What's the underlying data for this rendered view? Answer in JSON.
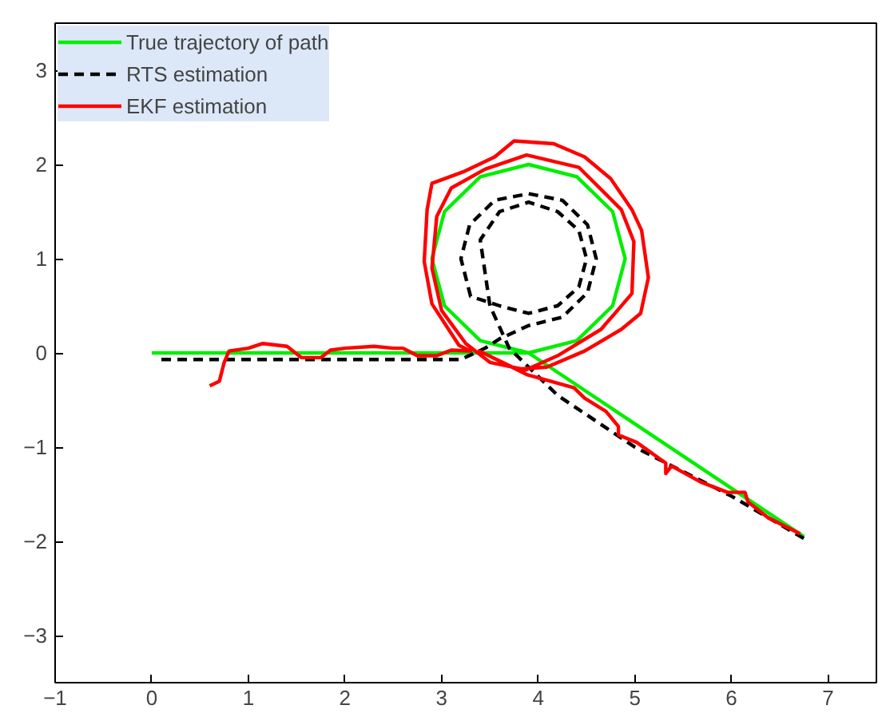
{
  "chart_data": {
    "type": "line",
    "xlim": [
      -1,
      7.5
    ],
    "ylim": [
      -3.5,
      3.5
    ],
    "xticks": [
      -1,
      0,
      1,
      2,
      3,
      4,
      5,
      6,
      7
    ],
    "yticks": [
      -3,
      -2,
      -1,
      0,
      1,
      2,
      3
    ],
    "grid": false,
    "legend": "top left",
    "marker": "none",
    "series": [
      {
        "name": "True trajectory of path",
        "color": "#00ee00",
        "line_style": "solid",
        "x": [
          0,
          3.9,
          4.4,
          4.77,
          4.9,
          4.77,
          4.4,
          3.9,
          3.4,
          3.03,
          2.9,
          3.03,
          3.4,
          3.9,
          6.75
        ],
        "values": [
          0,
          0,
          0.13,
          0.5,
          1,
          1.5,
          1.87,
          2,
          1.87,
          1.5,
          1,
          0.5,
          0.13,
          0,
          -1.95
        ]
      },
      {
        "name": "RTS estimation",
        "color": "#000000",
        "line_style": "dashed",
        "x": [
          0.1,
          3.2,
          3.45,
          3.6,
          3.9,
          4.25,
          4.51,
          4.6,
          4.51,
          4.25,
          3.9,
          3.55,
          3.29,
          3.2,
          3.3,
          3.6,
          3.9,
          4.2,
          4.42,
          4.5,
          4.42,
          4.2,
          3.9,
          3.6,
          3.4,
          3.5,
          3.7,
          4.2,
          5.0,
          6.0,
          6.75
        ],
        "values": [
          -0.07,
          -0.07,
          0.05,
          0.15,
          0.29,
          0.38,
          0.64,
          1.0,
          1.36,
          1.62,
          1.69,
          1.62,
          1.36,
          1.0,
          0.6,
          0.5,
          0.42,
          0.5,
          0.7,
          1.0,
          1.3,
          1.5,
          1.6,
          1.5,
          1.2,
          0.5,
          0.05,
          -0.45,
          -1.0,
          -1.52,
          -1.97
        ]
      },
      {
        "name": "EKF estimation",
        "color": "#ff0000",
        "line_style": "solid",
        "x": [
          0.6,
          0.7,
          0.75,
          0.8,
          1.0,
          1.15,
          1.4,
          1.55,
          1.75,
          1.85,
          2.0,
          2.3,
          2.5,
          2.6,
          2.75,
          2.95,
          3.1,
          3.3,
          3.18,
          2.9,
          2.82,
          2.85,
          2.9,
          3.22,
          3.55,
          3.75,
          4.16,
          4.48,
          4.75,
          4.97,
          5.07,
          5.14,
          5.06,
          4.86,
          4.48,
          4.09,
          3.83,
          3.5,
          3.25,
          3.0,
          2.9,
          2.95,
          3.1,
          3.45,
          3.88,
          4.42,
          4.86,
          4.99,
          4.97,
          4.65,
          4.2,
          3.83,
          3.39,
          3.88,
          4.37,
          4.48,
          4.7,
          4.83,
          4.83,
          5.02,
          5.32,
          5.32,
          5.38,
          5.68,
          5.96,
          6.14,
          6.17,
          6.38,
          6.71
        ],
        "values": [
          -0.35,
          -0.3,
          -0.1,
          0.02,
          0.05,
          0.1,
          0.07,
          -0.05,
          -0.05,
          0.03,
          0.05,
          0.07,
          0.05,
          0.05,
          -0.03,
          -0.03,
          0.03,
          0.02,
          0.08,
          0.52,
          0.97,
          1.52,
          1.8,
          1.92,
          2.08,
          2.25,
          2.22,
          2.08,
          1.85,
          1.52,
          1.3,
          0.8,
          0.42,
          0.25,
          0.02,
          -0.15,
          -0.17,
          -0.1,
          0.1,
          0.45,
          0.9,
          1.45,
          1.75,
          1.95,
          2.1,
          1.97,
          1.52,
          1.18,
          0.63,
          0.25,
          -0.03,
          -0.2,
          0.02,
          -0.23,
          -0.37,
          -0.48,
          -0.62,
          -0.78,
          -0.87,
          -0.95,
          -1.17,
          -1.28,
          -1.2,
          -1.37,
          -1.48,
          -1.48,
          -1.58,
          -1.75,
          -1.92
        ]
      }
    ]
  }
}
